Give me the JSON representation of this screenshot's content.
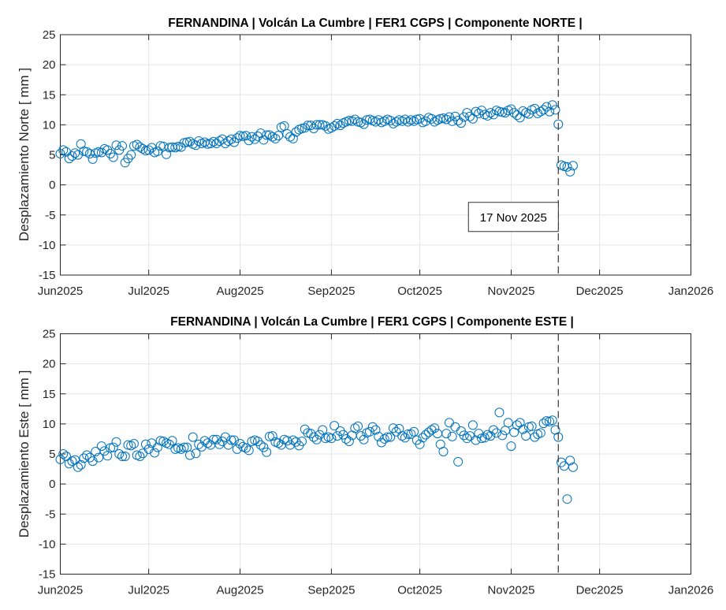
{
  "chart_data": [
    {
      "type": "scatter",
      "title": "FERNANDINA | Volcán La Cumbre | FER1 CGPS | Componente NORTE |",
      "xlabel": "",
      "ylabel": "Desplazamiento Norte [ mm ]",
      "xlim": [
        "2025-06-01",
        "2026-01-01"
      ],
      "ylim": [
        -15,
        25
      ],
      "xticks": [
        "Jun2025",
        "Jul2025",
        "Aug2025",
        "Sep2025",
        "Oct2025",
        "Nov2025",
        "Dec2025",
        "Jan2026"
      ],
      "yticks": [
        "-15",
        "-10",
        "-5",
        "0",
        "5",
        "10",
        "15",
        "20",
        "25"
      ],
      "grid": true,
      "marker": "open-circle",
      "color": "#0072BD",
      "event_line": {
        "date": "2025-11-17",
        "label": "17 Nov 2025",
        "style": "dashed"
      },
      "daily_values_by_month": {
        "2025-06": [
          5.2,
          5.8,
          5.5,
          4.4,
          4.8,
          5.3,
          5.0,
          6.8,
          5.6,
          5.5,
          5.2,
          4.3,
          5.3,
          5.5,
          5.4,
          6.0,
          5.8,
          5.2,
          4.6,
          6.6,
          5.8,
          6.5,
          3.7,
          4.4,
          5.0,
          6.5,
          6.7,
          6.3,
          6.0,
          5.7
        ],
        "2025-07": [
          5.8,
          6.2,
          5.4,
          5.6,
          6.5,
          6.4,
          5.1,
          6.2,
          6.3,
          6.2,
          6.4,
          6.3,
          7.0,
          7.1,
          7.2,
          6.8,
          6.6,
          7.3,
          6.9,
          7.1,
          6.8,
          6.9,
          7.2,
          6.9,
          7.3,
          7.6,
          6.9,
          7.3,
          7.6,
          7.1,
          7.8
        ],
        "2025-08": [
          8.2,
          8.1,
          8.2,
          7.4,
          8.0,
          7.6,
          8.1,
          8.6,
          7.5,
          8.3,
          8.3,
          8.0,
          7.7,
          8.2,
          9.6,
          9.8,
          8.5,
          8.0,
          7.7,
          8.8,
          9.2,
          9.4,
          9.5,
          9.9,
          9.9,
          9.4,
          10.0,
          10.0,
          10.0,
          9.8,
          9.3
        ],
        "2025-09": [
          9.5,
          9.8,
          10.2,
          9.9,
          10.3,
          10.5,
          10.7,
          10.6,
          10.9,
          10.5,
          10.4,
          10.1,
          10.8,
          10.9,
          10.7,
          10.5,
          10.8,
          10.4,
          10.6,
          10.9,
          10.7,
          10.2,
          10.5,
          10.8,
          10.6,
          10.9,
          10.5,
          10.8,
          10.6,
          10.9
        ],
        "2025-10": [
          11.0,
          10.4,
          10.6,
          11.2,
          11.0,
          10.5,
          10.8,
          11.0,
          11.1,
          10.9,
          11.3,
          10.6,
          11.4,
          10.7,
          10.3,
          11.3,
          12.0,
          11.4,
          11.0,
          12.2,
          11.9,
          12.4,
          11.7,
          11.5,
          12.0,
          11.7,
          12.4,
          12.2,
          12.1,
          12.0,
          12.4
        ],
        "2025-11": [
          12.6,
          12.0,
          11.6,
          11.2,
          12.3,
          12.0,
          11.8,
          12.5,
          12.7,
          11.9,
          12.2,
          12.5,
          13.0,
          12.2,
          13.3,
          12.5,
          10.1,
          3.3,
          3.1,
          3.0,
          2.2,
          3.2
        ]
      }
    },
    {
      "type": "scatter",
      "title": "FERNANDINA | Volcán La Cumbre | FER1 CGPS | Componente ESTE |",
      "xlabel": "",
      "ylabel": "Desplazamiento Este [ mm ]",
      "xlim": [
        "2025-06-01",
        "2026-01-01"
      ],
      "ylim": [
        -15,
        25
      ],
      "xticks": [
        "Jun2025",
        "Jul2025",
        "Aug2025",
        "Sep2025",
        "Oct2025",
        "Nov2025",
        "Dec2025",
        "Jan2026"
      ],
      "yticks": [
        "-15",
        "-10",
        "-5",
        "0",
        "5",
        "10",
        "15",
        "20",
        "25"
      ],
      "grid": true,
      "marker": "open-circle",
      "color": "#0072BD",
      "event_line": {
        "date": "2025-11-17",
        "style": "dashed"
      },
      "daily_values_by_month": {
        "2025-06": [
          4.1,
          5.0,
          4.6,
          3.4,
          3.8,
          4.0,
          2.8,
          3.2,
          4.3,
          4.8,
          4.4,
          3.8,
          5.4,
          4.4,
          6.3,
          5.5,
          4.7,
          6.0,
          6.1,
          7.0,
          5.0,
          4.6,
          4.6,
          6.5,
          6.4,
          6.7,
          4.8,
          4.6,
          5.1,
          6.6
        ],
        "2025-07": [
          5.8,
          6.8,
          5.2,
          6.1,
          7.2,
          7.1,
          6.8,
          6.6,
          7.2,
          5.8,
          6.0,
          5.8,
          6.1,
          6.1,
          4.8,
          7.8,
          5.1,
          6.6,
          6.2,
          7.2,
          6.8,
          6.5,
          7.4,
          7.4,
          6.6,
          7.1,
          7.8,
          6.5,
          7.3,
          7.3,
          5.8
        ],
        "2025-08": [
          6.7,
          6.2,
          6.0,
          5.6,
          7.1,
          7.3,
          7.1,
          6.5,
          6.1,
          5.3,
          7.9,
          8.0,
          7.0,
          6.8,
          6.5,
          7.4,
          7.2,
          6.5,
          7.3,
          7.0,
          6.4,
          7.1,
          9.1,
          8.5,
          8.4,
          7.8,
          7.4,
          8.2,
          9.0,
          7.6,
          7.8
        ],
        "2025-09": [
          7.6,
          9.7,
          8.0,
          8.8,
          8.2,
          7.5,
          7.1,
          8.1,
          9.3,
          9.6,
          8.0,
          7.4,
          8.5,
          8.7,
          9.5,
          9.0,
          7.9,
          6.9,
          7.5,
          7.8,
          7.8,
          9.3,
          8.7,
          9.2,
          8.0,
          7.7,
          8.3,
          8.3,
          8.7,
          7.3
        ],
        "2025-10": [
          6.6,
          7.7,
          8.2,
          8.6,
          9.0,
          9.3,
          8.4,
          6.6,
          5.4,
          8.4,
          10.2,
          7.9,
          9.5,
          3.7,
          8.8,
          8.1,
          7.6,
          8.0,
          9.8,
          7.3,
          8.4,
          7.6,
          7.7,
          8.2,
          8.0,
          9.0,
          8.5,
          11.9,
          8.1,
          8.9,
          10.2
        ],
        "2025-11": [
          6.3,
          8.6,
          9.8,
          10.2,
          9.1,
          8.0,
          9.5,
          9.6,
          7.8,
          8.3,
          8.5,
          10.1,
          10.5,
          10.4,
          10.6,
          9.0,
          7.8,
          3.6,
          3.0,
          -2.5,
          3.9,
          2.8
        ]
      }
    }
  ]
}
